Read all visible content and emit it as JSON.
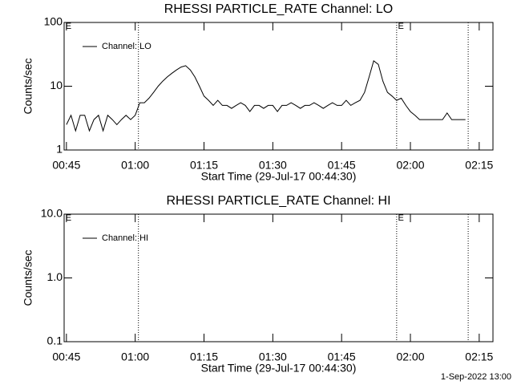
{
  "chart_data": [
    {
      "type": "line",
      "title": "RHESSI PARTICLE_RATE Channel: LO",
      "xlabel": "Start Time (29-Jul-17 00:44:30)",
      "ylabel": "Counts/sec",
      "log_y": true,
      "legend": "upper left",
      "xlim": [
        44.5,
        138
      ],
      "ylim": [
        1,
        100
      ],
      "xticks": [
        {
          "value": 45,
          "label": "00:45"
        },
        {
          "value": 60,
          "label": "01:00"
        },
        {
          "value": 75,
          "label": "01:15"
        },
        {
          "value": 90,
          "label": "01:30"
        },
        {
          "value": 105,
          "label": "01:45"
        },
        {
          "value": 120,
          "label": "02:00"
        },
        {
          "value": 135,
          "label": "02:15"
        }
      ],
      "yticks": [
        1,
        10,
        100
      ],
      "vlines": [
        60.7,
        117,
        132.6
      ],
      "annotations": [
        {
          "text": "E",
          "x": 44.8
        },
        {
          "text": "E",
          "x": 117.3
        }
      ],
      "x": [
        45,
        46,
        47,
        48,
        49,
        50,
        51,
        52,
        53,
        54,
        55,
        56,
        57,
        58,
        59,
        60,
        61,
        62,
        63,
        64,
        65,
        66,
        67,
        68,
        69,
        70,
        71,
        72,
        73,
        74,
        75,
        76,
        77,
        78,
        79,
        80,
        81,
        82,
        83,
        84,
        85,
        86,
        87,
        88,
        89,
        90,
        91,
        92,
        93,
        94,
        95,
        96,
        97,
        98,
        99,
        100,
        101,
        102,
        103,
        104,
        105,
        106,
        107,
        108,
        109,
        110,
        111,
        112,
        113,
        114,
        115,
        116,
        117,
        118,
        119,
        120,
        121,
        122,
        123,
        124,
        125,
        126,
        127,
        128,
        129,
        130,
        131,
        132
      ],
      "series": [
        {
          "name": "Channel: LO",
          "color": "#000000",
          "values": [
            2.5,
            3.5,
            2,
            3.5,
            3.5,
            2,
            3,
            3.5,
            2,
            3.5,
            3,
            2.5,
            3,
            3.5,
            3,
            3.5,
            5.5,
            5.5,
            6.5,
            8,
            10,
            12,
            14,
            16,
            18,
            20,
            21,
            18,
            14,
            10,
            7,
            6,
            5,
            6,
            5,
            5,
            4.5,
            5,
            5.5,
            5,
            4,
            5,
            5,
            4.5,
            5,
            5,
            4,
            5,
            5,
            5.5,
            5,
            4.5,
            5,
            5,
            5.5,
            5,
            4.5,
            5,
            5.5,
            5,
            5,
            6,
            5,
            5.5,
            6,
            8,
            14,
            25,
            22,
            12,
            8,
            7,
            6,
            6.5,
            5,
            4,
            3.5,
            3,
            3,
            3,
            3,
            3,
            3,
            3.8,
            3,
            3,
            3,
            3
          ]
        }
      ]
    },
    {
      "type": "line",
      "title": "RHESSI PARTICLE_RATE Channel: HI",
      "xlabel": "Start Time (29-Jul-17 00:44:30)",
      "ylabel": "Counts/sec",
      "log_y": true,
      "legend": "upper left",
      "xlim": [
        44.5,
        138
      ],
      "ylim": [
        0.1,
        10
      ],
      "xticks": [
        {
          "value": 45,
          "label": "00:45"
        },
        {
          "value": 60,
          "label": "01:00"
        },
        {
          "value": 75,
          "label": "01:15"
        },
        {
          "value": 90,
          "label": "01:30"
        },
        {
          "value": 105,
          "label": "01:45"
        },
        {
          "value": 120,
          "label": "02:00"
        },
        {
          "value": 135,
          "label": "02:15"
        }
      ],
      "yticks": [
        0.1,
        {
          "value": 1,
          "label": "1.0"
        },
        {
          "value": 10,
          "label": "10.0"
        }
      ],
      "vlines": [
        60.7,
        117,
        132.6
      ],
      "annotations": [
        {
          "text": "E",
          "x": 44.8
        },
        {
          "text": "E",
          "x": 117.3
        }
      ],
      "x": [],
      "series": [
        {
          "name": "Channel: HI",
          "color": "#000000",
          "values": []
        }
      ]
    }
  ],
  "footer": "1-Sep-2022 13:00"
}
